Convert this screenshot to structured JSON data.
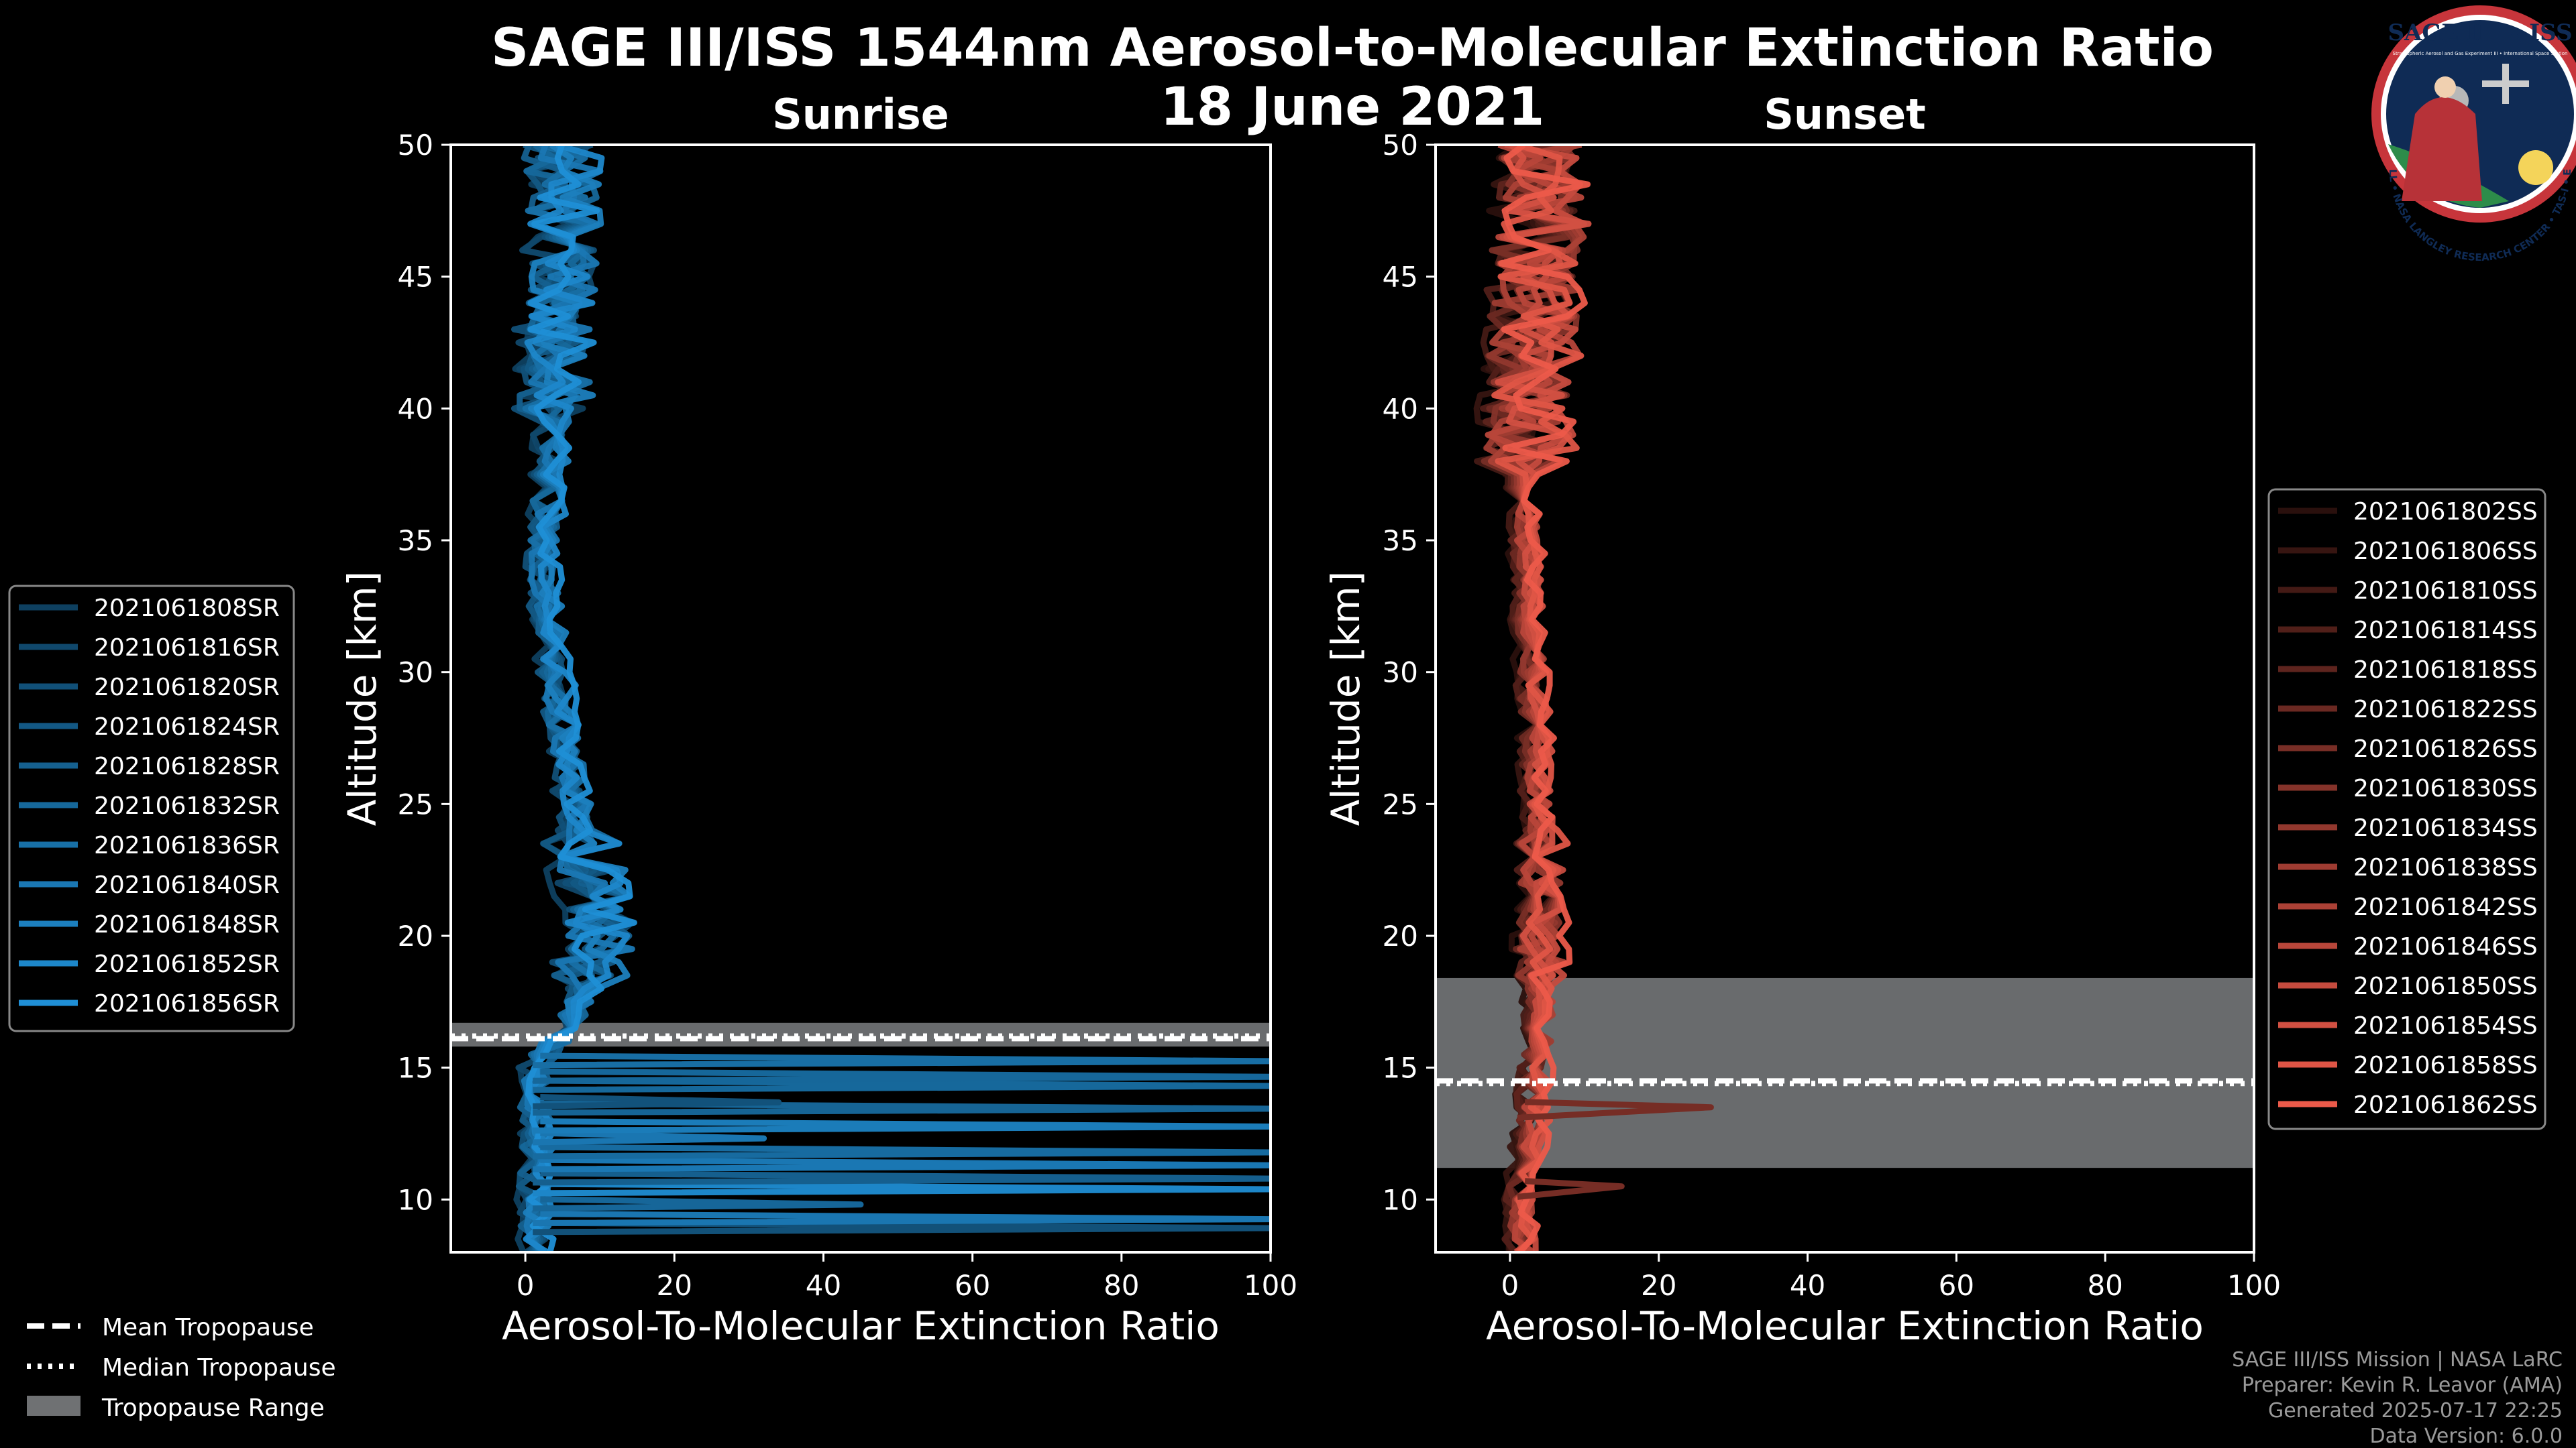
{
  "title": {
    "line1": "SAGE III/ISS 1544nm Aerosol-to-Molecular Extinction Ratio",
    "line2": "18 June 2021"
  },
  "logo": {
    "text": "SAGE III • ISS",
    "subtext": "Stratospheric Aerosol and Gas Experiment III • International Space Station",
    "ring_text": "BALL • NASA LANGLEY RESEARCH CENTER • TAS-I • ESA"
  },
  "footer": {
    "line1": "SAGE III/ISS Mission | NASA LaRC",
    "line2": "Preparer: Kevin R. Leavor (AMA)",
    "line3": "Generated 2025-07-17 22:25",
    "line4": "Data Version: 6.0.0"
  },
  "trop_legend": {
    "mean": "Mean Tropopause",
    "median": "Median Tropopause",
    "range": "Tropopause Range"
  },
  "colors": {
    "sunrise": "#1f8fd6",
    "sunset": "#ec5a4a",
    "trop_range": "#6f7173",
    "axes": "#ffffff",
    "background": "#000000"
  },
  "chart_data": [
    {
      "type": "line",
      "panel": "Sunrise",
      "title": "Sunrise",
      "xlabel": "Aerosol-To-Molecular Extinction Ratio",
      "ylabel": "Altitude [km]",
      "xlim": [
        -10,
        100
      ],
      "ylim": [
        8,
        50
      ],
      "xticks": [
        0,
        20,
        40,
        60,
        80,
        100
      ],
      "yticks": [
        10,
        15,
        20,
        25,
        30,
        35,
        40,
        45,
        50
      ],
      "tropopause": {
        "mean": 16.1,
        "median": 16.2,
        "range": [
          15.8,
          16.7
        ]
      },
      "legend_position": "outside-left",
      "series": [
        {
          "name": "2021061808SR"
        },
        {
          "name": "2021061816SR"
        },
        {
          "name": "2021061820SR"
        },
        {
          "name": "2021061824SR"
        },
        {
          "name": "2021061828SR"
        },
        {
          "name": "2021061832SR"
        },
        {
          "name": "2021061836SR"
        },
        {
          "name": "2021061840SR"
        },
        {
          "name": "2021061848SR"
        },
        {
          "name": "2021061852SR"
        },
        {
          "name": "2021061856SR"
        }
      ],
      "profile": {
        "altitude": [
          8,
          9,
          10,
          11,
          12,
          13,
          14,
          15,
          16,
          17,
          18,
          19,
          20,
          21,
          22,
          23,
          24,
          25,
          26,
          27,
          28,
          29,
          30,
          31,
          32,
          33,
          34,
          35,
          36,
          37,
          38,
          39,
          40,
          41,
          42,
          43,
          44,
          45,
          46,
          47,
          48,
          49,
          50
        ],
        "ratio": [
          1.5,
          1.5,
          1.5,
          1.5,
          1.5,
          1.5,
          1.5,
          1.5,
          4,
          6.5,
          8,
          9,
          10,
          10,
          9,
          8,
          7,
          6.5,
          6,
          5.5,
          5,
          4.5,
          4,
          3.5,
          3,
          2.5,
          2.5,
          2.5,
          3,
          3,
          3.5,
          3.5,
          4,
          4,
          4,
          4,
          4.5,
          5,
          5,
          5,
          5,
          5,
          5
        ],
        "spread_low_alt": 2,
        "spread_high_alt": 5,
        "noise_altitude_km": 40,
        "strat_spread_peak": 3
      },
      "tropospheric_spikes_x": [
        100,
        100,
        45,
        100,
        100,
        100,
        100,
        32,
        100,
        100,
        34,
        100,
        100,
        100
      ]
    },
    {
      "type": "line",
      "panel": "Sunset",
      "title": "Sunset",
      "xlabel": "Aerosol-To-Molecular Extinction Ratio",
      "ylabel": "Altitude [km]",
      "xlim": [
        -10,
        100
      ],
      "ylim": [
        8,
        50
      ],
      "xticks": [
        0,
        20,
        40,
        60,
        80,
        100
      ],
      "yticks": [
        10,
        15,
        20,
        25,
        30,
        35,
        40,
        45,
        50
      ],
      "tropopause": {
        "mean": 14.5,
        "median": 14.4,
        "range": [
          11.2,
          18.4
        ]
      },
      "legend_position": "outside-right",
      "series": [
        {
          "name": "2021061802SS"
        },
        {
          "name": "2021061806SS"
        },
        {
          "name": "2021061810SS"
        },
        {
          "name": "2021061814SS"
        },
        {
          "name": "2021061818SS"
        },
        {
          "name": "2021061822SS"
        },
        {
          "name": "2021061826SS"
        },
        {
          "name": "2021061830SS"
        },
        {
          "name": "2021061834SS"
        },
        {
          "name": "2021061838SS"
        },
        {
          "name": "2021061842SS"
        },
        {
          "name": "2021061846SS"
        },
        {
          "name": "2021061850SS"
        },
        {
          "name": "2021061854SS"
        },
        {
          "name": "2021061858SS"
        },
        {
          "name": "2021061862SS"
        }
      ],
      "profile": {
        "altitude": [
          8,
          9,
          10,
          11,
          12,
          13,
          14,
          15,
          16,
          17,
          18,
          19,
          20,
          21,
          22,
          23,
          24,
          25,
          26,
          27,
          28,
          29,
          30,
          31,
          32,
          33,
          34,
          35,
          36,
          37,
          38,
          39,
          40,
          41,
          42,
          43,
          44,
          45,
          46,
          47,
          48,
          49,
          50
        ],
        "ratio": [
          1.5,
          1.5,
          1.5,
          2,
          2.5,
          3,
          3,
          3.5,
          4,
          4,
          4,
          4,
          4,
          4,
          4,
          4,
          4,
          3.5,
          3.5,
          3.5,
          3.5,
          3,
          3,
          3,
          2.5,
          2.5,
          2.5,
          2,
          2,
          2,
          2,
          2.5,
          2.5,
          3,
          3,
          3,
          3.5,
          3.5,
          3.5,
          4,
          4,
          4,
          4
        ],
        "spread_low_alt": 1.5,
        "spread_high_alt": 6,
        "noise_altitude_km": 38,
        "strat_spread_peak": 1.5
      },
      "spikes": [
        {
          "altitude": 13.5,
          "ratio": 27
        },
        {
          "altitude": 10.5,
          "ratio": 15
        }
      ]
    }
  ]
}
